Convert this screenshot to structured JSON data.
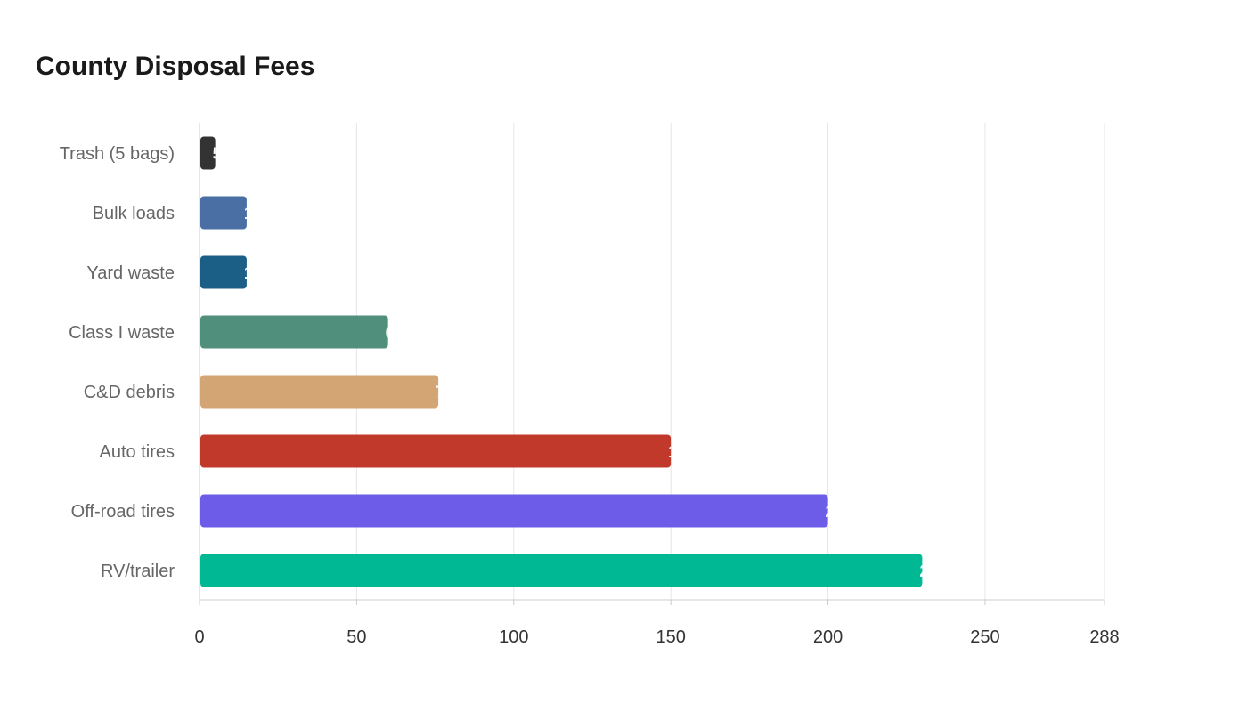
{
  "chart_data": {
    "type": "bar",
    "orientation": "horizontal",
    "title": "County Disposal Fees",
    "categories": [
      "Trash (5 bags)",
      "Bulk loads",
      "Yard waste",
      "Class I waste",
      "C&D debris",
      "Auto tires",
      "Off-road tires",
      "RV/trailer"
    ],
    "values": [
      5,
      15,
      15,
      60,
      76,
      150,
      200,
      230
    ],
    "value_labels": [
      "5",
      "15",
      "15",
      "60",
      "76",
      "150",
      "200",
      "230"
    ],
    "colors": [
      "#333333",
      "#4a6fa5",
      "#1b5f86",
      "#4f8f7c",
      "#d4a574",
      "#c0392b",
      "#6c5ce7",
      "#00b894"
    ],
    "xticks": [
      0,
      50,
      100,
      150,
      200,
      250,
      288
    ],
    "xlim": [
      0,
      288
    ],
    "grid": true,
    "xlabel": "",
    "ylabel": ""
  }
}
